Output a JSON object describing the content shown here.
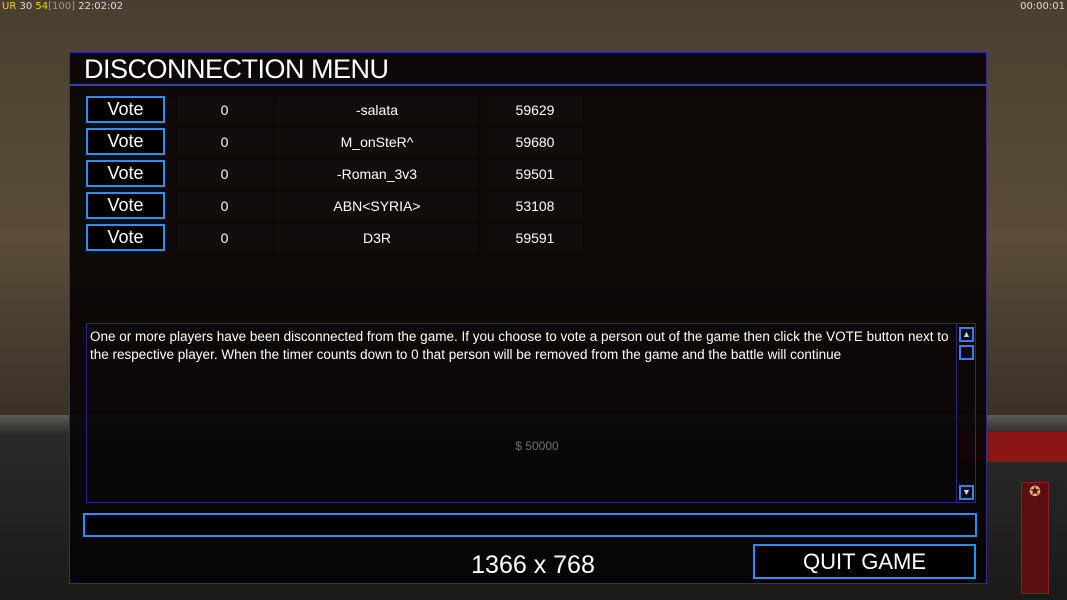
{
  "hud": {
    "status_prefix": "UR",
    "status_a": "30",
    "status_b": "54",
    "status_c": "[100]",
    "clock": "22:02:02",
    "timer": "00:00:01",
    "money": "$ 50000"
  },
  "dialog": {
    "title": "DISCONNECTION MENU",
    "vote_label": "Vote",
    "players": [
      {
        "votes": "0",
        "name": "-salata",
        "id": "59629"
      },
      {
        "votes": "0",
        "name": "M_onSteR^",
        "id": "59680"
      },
      {
        "votes": "0",
        "name": "-Roman_3v3",
        "id": "59501"
      },
      {
        "votes": "0",
        "name": "ABN<SYRIA>",
        "id": "53108"
      },
      {
        "votes": "0",
        "name": "D3R",
        "id": "59591"
      }
    ],
    "message": "One or more players have been disconnected from the game. If you choose to vote a person out of the game then click the VOTE button next to the respective player. When the timer counts down to 0 that person will be removed from the game and the battle will continue",
    "chat_value": "",
    "resolution": "1366 x 768",
    "quit_label": "QUIT GAME"
  },
  "colors": {
    "accent": "#2b8ff0",
    "title_rule": "#3a3fb0"
  }
}
